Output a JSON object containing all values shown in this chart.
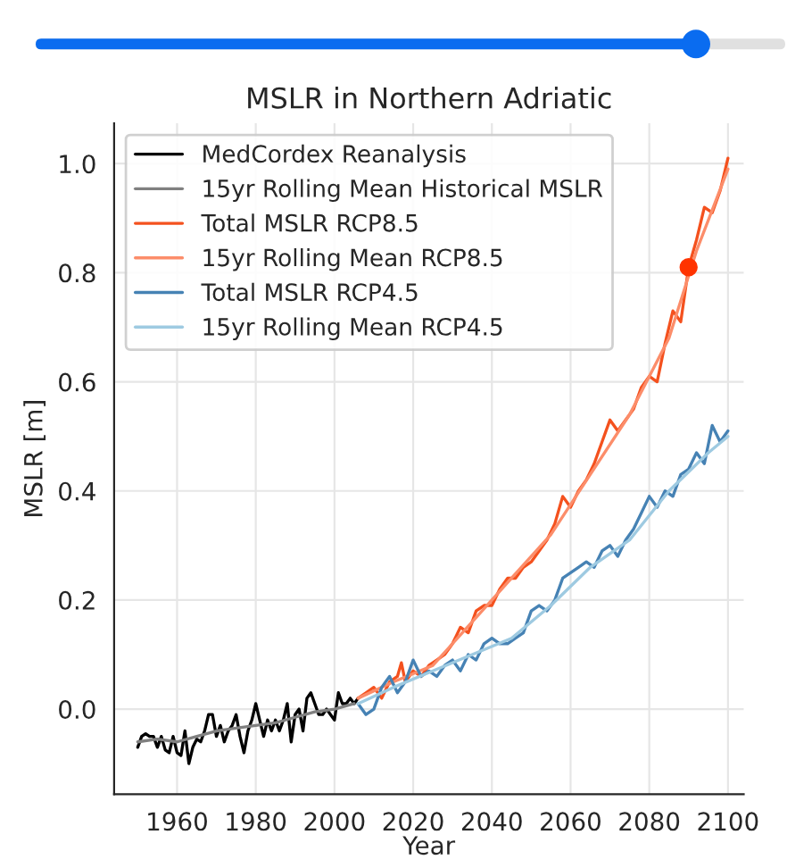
{
  "chart_data": {
    "type": "line",
    "title": "MSLR in Northern Adriatic",
    "xlabel": "Year",
    "ylabel": "MSLR [m]",
    "xlim": [
      1944,
      2104
    ],
    "ylim": [
      -0.156,
      1.074
    ],
    "xticks": [
      1960,
      1980,
      2000,
      2020,
      2040,
      2060,
      2080,
      2100
    ],
    "yticks": [
      {
        "value": 0,
        "label": "0.0"
      },
      {
        "value": 0.2,
        "label": "0.2"
      },
      {
        "value": 0.4,
        "label": "0.4"
      },
      {
        "value": 0.6,
        "label": "0.6"
      },
      {
        "value": 0.8,
        "label": "0.8"
      },
      {
        "value": 1.0,
        "label": "1.0"
      }
    ],
    "grid": true,
    "legend": "top left",
    "marker": "none",
    "line_style": "solid",
    "series": [
      {
        "name": "MedCordex Reanalysis",
        "color": "#000000",
        "x": [
          1950,
          1951,
          1952,
          1953,
          1954,
          1955,
          1956,
          1957,
          1958,
          1959,
          1960,
          1961,
          1962,
          1963,
          1964,
          1965,
          1966,
          1967,
          1968,
          1969,
          1970,
          1971,
          1972,
          1973,
          1974,
          1975,
          1976,
          1977,
          1978,
          1979,
          1980,
          1981,
          1982,
          1983,
          1984,
          1985,
          1986,
          1987,
          1988,
          1989,
          1990,
          1991,
          1992,
          1993,
          1994,
          1995,
          1996,
          1997,
          1998,
          1999,
          2000,
          2001,
          2002,
          2003,
          2004,
          2005,
          2006
        ],
        "values": [
          -0.07,
          -0.05,
          -0.045,
          -0.05,
          -0.05,
          -0.07,
          -0.05,
          -0.075,
          -0.08,
          -0.05,
          -0.08,
          -0.085,
          -0.04,
          -0.1,
          -0.07,
          -0.055,
          -0.06,
          -0.04,
          -0.01,
          -0.01,
          -0.05,
          -0.03,
          -0.06,
          -0.04,
          -0.03,
          -0.01,
          -0.05,
          -0.08,
          -0.04,
          -0.02,
          0.01,
          -0.02,
          -0.05,
          -0.02,
          -0.04,
          -0.02,
          -0.04,
          -0.02,
          0.01,
          -0.06,
          -0.01,
          0.0,
          -0.04,
          0.02,
          0.03,
          0.01,
          -0.01,
          -0.01,
          0.0,
          -0.01,
          -0.02,
          0.03,
          0.01,
          0.01,
          0.02,
          0.01,
          0.02
        ]
      },
      {
        "name": "15yr Rolling Mean Historical MSLR",
        "color": "#808080",
        "x": [
          1950,
          1955,
          1960,
          1965,
          1970,
          1975,
          1980,
          1985,
          1990,
          1995,
          2000,
          2005
        ],
        "values": [
          -0.06,
          -0.055,
          -0.06,
          -0.05,
          -0.04,
          -0.035,
          -0.03,
          -0.025,
          -0.015,
          -0.005,
          0.0,
          0.01
        ]
      },
      {
        "name": "Total MSLR RCP8.5",
        "color": "#f4511e",
        "x": [
          2006,
          2008,
          2010,
          2012,
          2014,
          2016,
          2017,
          2018,
          2020,
          2022,
          2024,
          2026,
          2028,
          2030,
          2032,
          2034,
          2036,
          2038,
          2040,
          2042,
          2044,
          2046,
          2048,
          2050,
          2052,
          2054,
          2056,
          2058,
          2060,
          2062,
          2064,
          2066,
          2068,
          2070,
          2072,
          2074,
          2076,
          2078,
          2080,
          2082,
          2084,
          2086,
          2088,
          2090,
          2092,
          2094,
          2096,
          2098,
          2100
        ],
        "values": [
          0.02,
          0.03,
          0.04,
          0.02,
          0.05,
          0.06,
          0.085,
          0.05,
          0.07,
          0.06,
          0.08,
          0.09,
          0.1,
          0.12,
          0.15,
          0.14,
          0.18,
          0.19,
          0.19,
          0.22,
          0.24,
          0.24,
          0.26,
          0.27,
          0.29,
          0.31,
          0.34,
          0.39,
          0.37,
          0.4,
          0.42,
          0.45,
          0.49,
          0.53,
          0.51,
          0.53,
          0.55,
          0.59,
          0.61,
          0.6,
          0.67,
          0.73,
          0.71,
          0.81,
          0.86,
          0.92,
          0.91,
          0.95,
          1.01
        ]
      },
      {
        "name": "15yr Rolling Mean RCP8.5",
        "color": "#fc8d6a",
        "x": [
          2006,
          2015,
          2025,
          2035,
          2045,
          2055,
          2065,
          2075,
          2085,
          2092,
          2100
        ],
        "values": [
          0.02,
          0.05,
          0.08,
          0.16,
          0.24,
          0.32,
          0.43,
          0.54,
          0.68,
          0.84,
          0.99
        ]
      },
      {
        "name": "Total MSLR RCP4.5",
        "color": "#4682b4",
        "x": [
          2006,
          2008,
          2010,
          2012,
          2014,
          2016,
          2018,
          2020,
          2022,
          2024,
          2026,
          2028,
          2030,
          2032,
          2034,
          2036,
          2038,
          2040,
          2042,
          2044,
          2046,
          2048,
          2050,
          2052,
          2054,
          2056,
          2058,
          2060,
          2062,
          2064,
          2066,
          2068,
          2070,
          2072,
          2074,
          2076,
          2078,
          2080,
          2082,
          2084,
          2086,
          2088,
          2090,
          2092,
          2094,
          2096,
          2098,
          2100
        ],
        "values": [
          0.01,
          -0.01,
          0.0,
          0.04,
          0.06,
          0.03,
          0.05,
          0.09,
          0.06,
          0.07,
          0.06,
          0.08,
          0.09,
          0.07,
          0.1,
          0.09,
          0.12,
          0.13,
          0.12,
          0.12,
          0.13,
          0.14,
          0.18,
          0.19,
          0.18,
          0.2,
          0.24,
          0.25,
          0.26,
          0.27,
          0.26,
          0.29,
          0.3,
          0.28,
          0.31,
          0.33,
          0.36,
          0.39,
          0.37,
          0.4,
          0.39,
          0.43,
          0.44,
          0.47,
          0.45,
          0.52,
          0.49,
          0.51
        ]
      },
      {
        "name": "15yr Rolling Mean RCP4.5",
        "color": "#9ecae1",
        "x": [
          2006,
          2015,
          2025,
          2035,
          2045,
          2055,
          2065,
          2075,
          2085,
          2095,
          2100
        ],
        "values": [
          0.01,
          0.04,
          0.07,
          0.1,
          0.13,
          0.19,
          0.26,
          0.31,
          0.4,
          0.47,
          0.5
        ]
      },
      {
        "type": "scatter",
        "marker": "circle",
        "color": "#ff3300",
        "x": [
          2090
        ],
        "values": [
          0.81
        ]
      }
    ]
  }
}
